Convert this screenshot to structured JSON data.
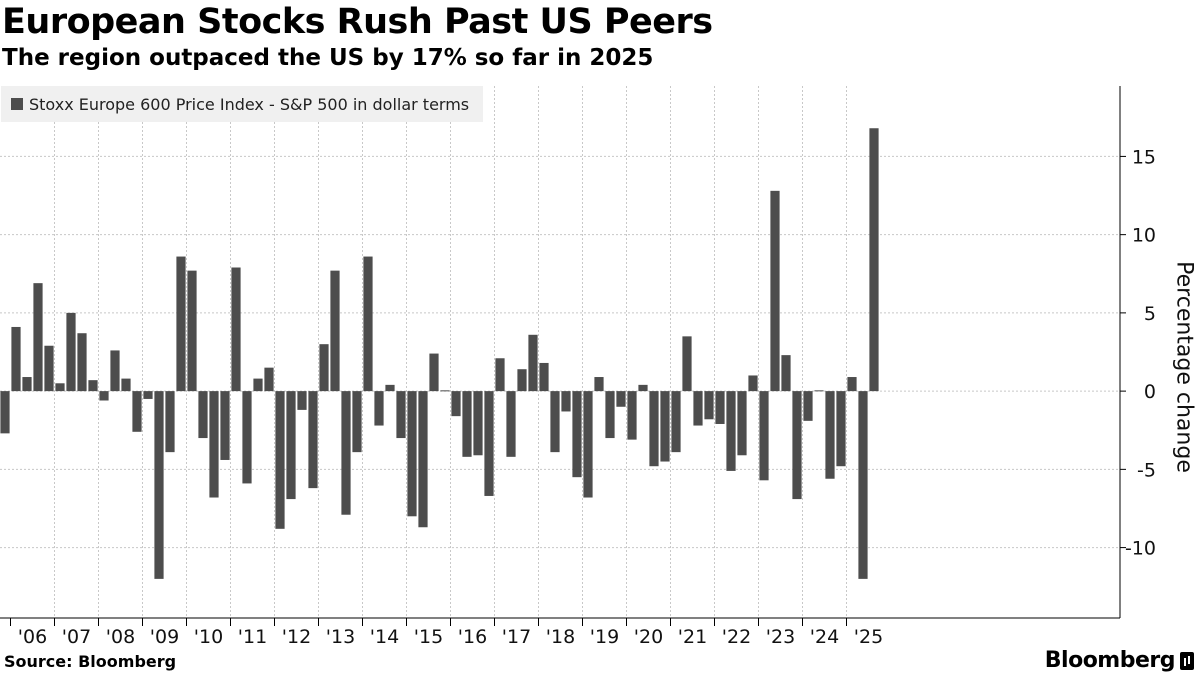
{
  "header": {
    "title": "European Stocks Rush Past US Peers",
    "subtitle": "The region outpaced the US by 17% so far in 2025"
  },
  "footer": {
    "source": "Source: Bloomberg",
    "brand": "Bloomberg"
  },
  "colors": {
    "bar": "#4d4d4d",
    "gridline": "#c8c8c8",
    "axis": "#000000",
    "legend_bg": "#f0f0f0"
  },
  "chart_data": {
    "type": "bar",
    "title": "European Stocks Rush Past US Peers",
    "subtitle": "The region outpaced the US by 17% so far in 2025",
    "ylabel": "Percentage change",
    "xlabel": "",
    "ylim": [
      -14.5,
      19.5
    ],
    "yticks": [
      15,
      10,
      5,
      0,
      -5,
      -10
    ],
    "ytick_labels": [
      "15",
      "10",
      "5",
      "0",
      "-5",
      "-10"
    ],
    "grid": true,
    "legend": {
      "position": "top-left",
      "entries": [
        "Stoxx Europe 600 Price Index - S&P 500 in dollar terms"
      ]
    },
    "year_labels": [
      "'06",
      "'07",
      "'08",
      "'09",
      "'10",
      "'11",
      "'12",
      "'13",
      "'14",
      "'15",
      "'16",
      "'17",
      "'18",
      "'19",
      "'20",
      "'21",
      "'22",
      "'23",
      "'24",
      "'25"
    ],
    "series": [
      {
        "name": "Stoxx Europe 600 Price Index - S&P 500 in dollar terms",
        "values": [
          -2.7,
          4.1,
          0.9,
          6.9,
          2.9,
          0.5,
          5.0,
          3.7,
          0.7,
          -0.6,
          2.6,
          0.8,
          -2.6,
          -0.5,
          -12.0,
          -3.9,
          8.6,
          7.7,
          -3.0,
          -6.8,
          -4.4,
          7.9,
          -5.9,
          0.8,
          1.5,
          -8.8,
          -6.9,
          -1.2,
          -6.2,
          3.0,
          7.7,
          -7.9,
          -3.9,
          8.6,
          -2.2,
          0.4,
          -3.0,
          -8.0,
          -8.7,
          2.4,
          0.05,
          -1.6,
          -4.2,
          -4.1,
          -6.7,
          2.1,
          -4.2,
          1.4,
          3.6,
          1.8,
          -3.9,
          -1.3,
          -5.5,
          -6.8,
          0.9,
          -3.0,
          -1.0,
          -3.1,
          0.4,
          -4.8,
          -4.5,
          -3.9,
          3.5,
          -2.2,
          -1.8,
          -2.1,
          -5.1,
          -4.1,
          1.0,
          -5.7,
          12.8,
          2.3,
          -6.9,
          -1.9,
          0.05,
          -5.6,
          -4.8,
          0.9,
          -12.0,
          16.8
        ]
      }
    ]
  }
}
